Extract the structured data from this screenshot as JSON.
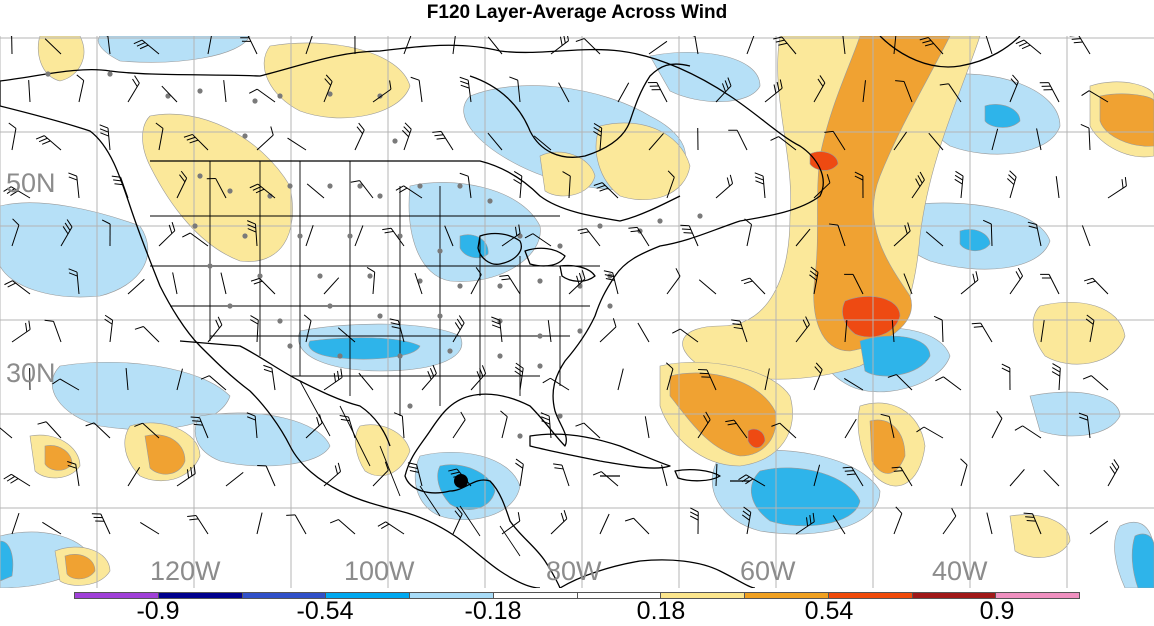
{
  "title": "F120 Layer-Average Across Wind",
  "lat_labels": [
    "50N",
    "30N"
  ],
  "lon_labels": [
    "120W",
    "100W",
    "80W",
    "60W",
    "40W"
  ],
  "colorbar": {
    "colors": [
      "#a040d8",
      "#00008c",
      "#3050c8",
      "#00a8f0",
      "#a8dcf8",
      "#ffffff",
      "#ffffff",
      "#fbe58c",
      "#f0a020",
      "#f04a0a",
      "#a01818",
      "#f090c0"
    ],
    "tick_labels": [
      "-0.9",
      "-0.54",
      "-0.18",
      "0.18",
      "0.54",
      "0.9"
    ]
  },
  "colors": {
    "light_blue": "#b6e0f7",
    "mid_blue": "#2eb4ea",
    "light_yellow": "#fbe89a",
    "orange": "#f0a232",
    "red_orange": "#ee4a12",
    "coast": "#000000",
    "grid": "#b4b4b4",
    "station": "#7a7a7a"
  }
}
